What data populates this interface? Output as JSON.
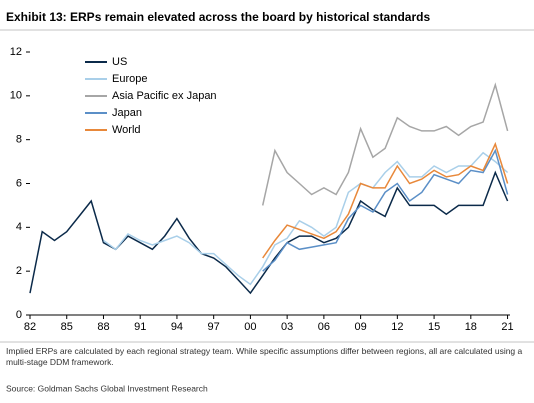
{
  "chart_data": {
    "type": "line",
    "title": "Exhibit 13: ERPs remain elevated across the board by historical standards",
    "note": "Implied ERPs are calculated by each regional strategy team. While specific assumptions differ between regions, all are calculated using a multi-stage DDM framework.",
    "source": "Source: Goldman Sachs Global Investment Research",
    "x": [
      1982,
      1983,
      1984,
      1985,
      1986,
      1987,
      1988,
      1989,
      1990,
      1991,
      1992,
      1993,
      1994,
      1995,
      1996,
      1997,
      1998,
      1999,
      2000,
      2001,
      2002,
      2003,
      2004,
      2005,
      2006,
      2007,
      2008,
      2009,
      2010,
      2011,
      2012,
      2013,
      2014,
      2015,
      2016,
      2017,
      2018,
      2019,
      2020,
      2021
    ],
    "series": [
      {
        "name": "US",
        "color": "#0b2a4a",
        "values": [
          1.0,
          3.8,
          3.4,
          3.8,
          4.5,
          5.2,
          3.3,
          3.0,
          3.6,
          3.3,
          3.0,
          3.6,
          4.4,
          3.5,
          2.8,
          2.6,
          2.2,
          1.6,
          1.0,
          1.8,
          2.6,
          3.3,
          3.6,
          3.6,
          3.3,
          3.5,
          4.0,
          5.2,
          4.8,
          4.5,
          5.8,
          5.0,
          5.0,
          5.0,
          4.6,
          5.0,
          5.0,
          5.0,
          6.5,
          5.2
        ]
      },
      {
        "name": "Europe",
        "color": "#a9cfe9",
        "values": [
          null,
          null,
          null,
          null,
          null,
          null,
          3.4,
          3.0,
          3.7,
          3.4,
          3.2,
          3.4,
          3.6,
          3.3,
          2.8,
          2.8,
          2.3,
          1.8,
          1.4,
          2.2,
          3.2,
          3.5,
          4.3,
          4.0,
          3.6,
          4.0,
          5.6,
          6.0,
          5.8,
          6.5,
          7.0,
          6.3,
          6.3,
          6.8,
          6.5,
          6.8,
          6.8,
          7.4,
          7.0,
          6.5
        ]
      },
      {
        "name": "Asia Pacific ex Japan",
        "color": "#a6a6a6",
        "values": [
          null,
          null,
          null,
          null,
          null,
          null,
          null,
          null,
          null,
          null,
          null,
          null,
          null,
          null,
          null,
          null,
          null,
          null,
          null,
          5.0,
          7.5,
          6.5,
          6.0,
          5.5,
          5.8,
          5.5,
          6.5,
          8.5,
          7.2,
          7.6,
          9.0,
          8.6,
          8.4,
          8.4,
          8.6,
          8.2,
          8.6,
          8.8,
          10.5,
          8.4
        ]
      },
      {
        "name": "Japan",
        "color": "#5b8fc7",
        "values": [
          null,
          null,
          null,
          null,
          null,
          null,
          null,
          null,
          null,
          null,
          null,
          null,
          null,
          null,
          null,
          null,
          null,
          null,
          null,
          2.0,
          2.5,
          3.3,
          3.0,
          3.1,
          3.2,
          3.3,
          4.4,
          5.0,
          4.7,
          5.6,
          6.0,
          5.2,
          5.6,
          6.4,
          6.2,
          6.0,
          6.6,
          6.5,
          7.5,
          5.5
        ]
      },
      {
        "name": "World",
        "color": "#e8883a",
        "values": [
          null,
          null,
          null,
          null,
          null,
          null,
          null,
          null,
          null,
          null,
          null,
          null,
          null,
          null,
          null,
          null,
          null,
          null,
          null,
          2.6,
          3.4,
          4.1,
          3.9,
          3.7,
          3.5,
          3.8,
          4.6,
          6.0,
          5.8,
          5.8,
          6.8,
          6.0,
          6.2,
          6.6,
          6.3,
          6.4,
          6.8,
          6.6,
          7.8,
          6.0
        ]
      }
    ],
    "xlim": [
      1982,
      2021.2
    ],
    "xticks": [
      {
        "value": 1982,
        "label": "82"
      },
      {
        "value": 1985,
        "label": "85"
      },
      {
        "value": 1988,
        "label": "88"
      },
      {
        "value": 1991,
        "label": "91"
      },
      {
        "value": 1994,
        "label": "94"
      },
      {
        "value": 1997,
        "label": "97"
      },
      {
        "value": 2000,
        "label": "00"
      },
      {
        "value": 2003,
        "label": "03"
      },
      {
        "value": 2006,
        "label": "06"
      },
      {
        "value": 2009,
        "label": "09"
      },
      {
        "value": 2012,
        "label": "12"
      },
      {
        "value": 2015,
        "label": "15"
      },
      {
        "value": 2018,
        "label": "18"
      },
      {
        "value": 2021,
        "label": "21"
      }
    ],
    "ylim": [
      0,
      12
    ],
    "yticks": [
      0,
      2,
      4,
      6,
      8,
      10,
      12
    ],
    "legend": "upper left"
  }
}
